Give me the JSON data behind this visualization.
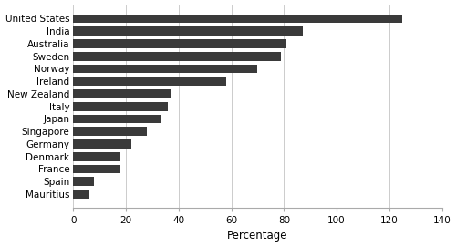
{
  "countries": [
    "United States",
    "India",
    "Australia",
    "Sweden",
    "Norway",
    "Ireland",
    "New Zealand",
    "Italy",
    "Japan",
    "Singapore",
    "Germany",
    "Denmark",
    "France",
    "Spain",
    "Mauritius"
  ],
  "values": [
    125,
    87,
    81,
    79,
    70,
    58,
    37,
    36,
    33,
    28,
    22,
    18,
    18,
    8,
    6
  ],
  "bar_color": "#3a3a3a",
  "background_color": "#ffffff",
  "xlabel": "Percentage",
  "xlim": [
    0,
    140
  ],
  "xticks": [
    0,
    20,
    40,
    60,
    80,
    100,
    120,
    140
  ],
  "grid_color": "#cccccc",
  "tick_fontsize": 7.5,
  "label_fontsize": 7.5,
  "xlabel_fontsize": 8.5
}
